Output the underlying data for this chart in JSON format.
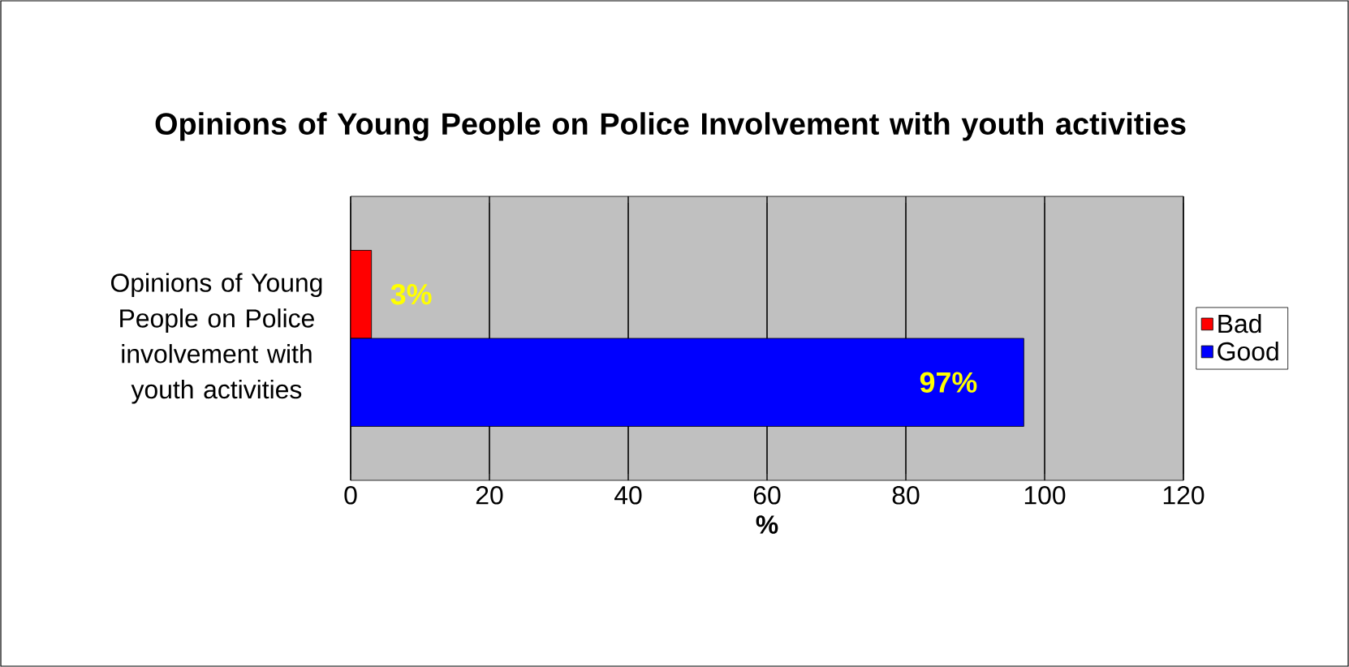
{
  "chart_data": {
    "type": "bar",
    "orientation": "horizontal",
    "title": "Opinions of Young People on Police Involvement with youth activities",
    "xlabel": "%",
    "categories": [
      "Opinions of Young People on Police involvement with youth activities"
    ],
    "series": [
      {
        "name": "Bad",
        "color": "#ff0000",
        "values": [
          3
        ],
        "value_labels": [
          "3%"
        ]
      },
      {
        "name": "Good",
        "color": "#0000ff",
        "values": [
          97
        ],
        "value_labels": [
          "97%"
        ]
      }
    ],
    "xlim": [
      0,
      120
    ],
    "xticks": [
      0,
      20,
      40,
      60,
      80,
      100,
      120
    ],
    "grid": "x",
    "legend": "right"
  }
}
